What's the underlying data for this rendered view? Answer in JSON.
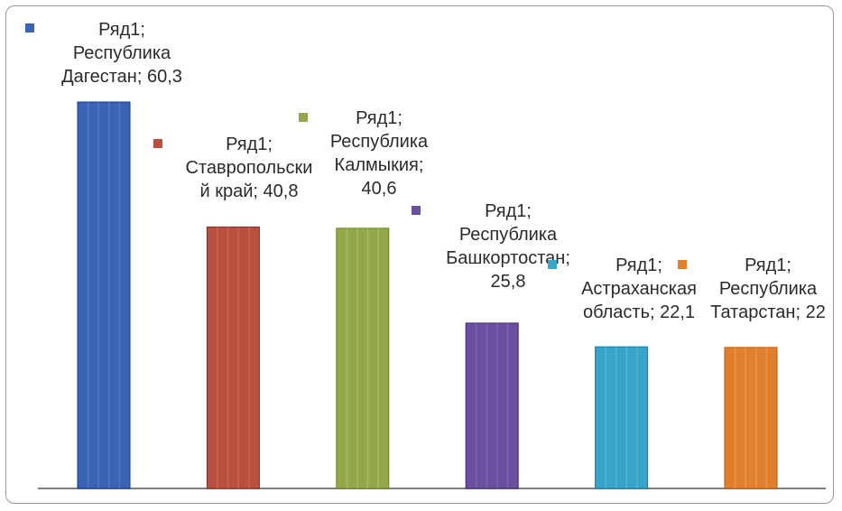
{
  "chart_data": {
    "type": "bar",
    "title": "",
    "xlabel": "",
    "ylabel": "",
    "ylim": [
      0,
      60.3
    ],
    "grid": false,
    "series_name": "Ряд1",
    "categories": [
      "Республика Дагестан",
      "Ставропольский край",
      "Республика Калмыкия",
      "Республика Башкортостан",
      "Астраханская область",
      "Республика Татарстан"
    ],
    "values": [
      60.3,
      40.8,
      40.6,
      25.8,
      22.1,
      22
    ],
    "colors": [
      "#3a63b5",
      "#b9503f",
      "#93a84a",
      "#6a4f9e",
      "#3aa3c8",
      "#e07f2e"
    ],
    "data_labels": [
      [
        "Ряд1;",
        "Республика",
        "Дагестан; 60,3"
      ],
      [
        "Ряд1;",
        "Ставропольски",
        "й край; 40,8"
      ],
      [
        "Ряд1;",
        "Республика",
        "Калмыкия;",
        "40,6"
      ],
      [
        "Ряд1;",
        "Республика",
        "Башкортостан;",
        "25,8"
      ],
      [
        "Ряд1;",
        "Астраханская",
        "область; 22,1"
      ],
      [
        "Ряд1;",
        "Республика",
        "Татарстан; 22"
      ]
    ]
  }
}
